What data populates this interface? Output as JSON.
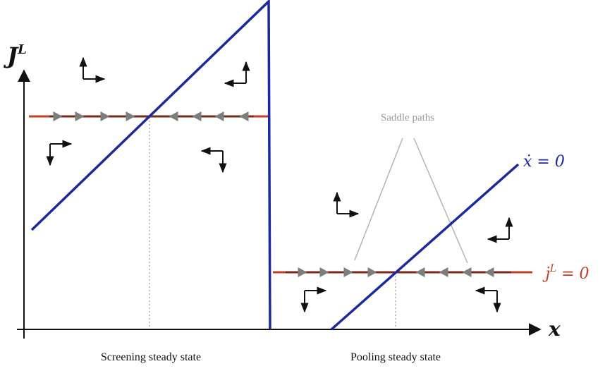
{
  "axes": {
    "y_label_main": "J",
    "y_label_sup": "L",
    "x_label": "x"
  },
  "curves": {
    "xdot_label": "ẋ = 0",
    "jdot_label": "j̇",
    "jdot_sup": "L",
    "jdot_rhs": " = 0"
  },
  "annotations": {
    "saddle_paths": "Saddle paths"
  },
  "captions": {
    "screening": "Screening steady state",
    "pooling": "Pooling steady state"
  },
  "colors": {
    "blue": "#1a2a9c",
    "red": "#c43c22",
    "arrow_gray": "#7d7d7d",
    "saddle_gray": "#b4b4b4",
    "black": "#111111"
  }
}
